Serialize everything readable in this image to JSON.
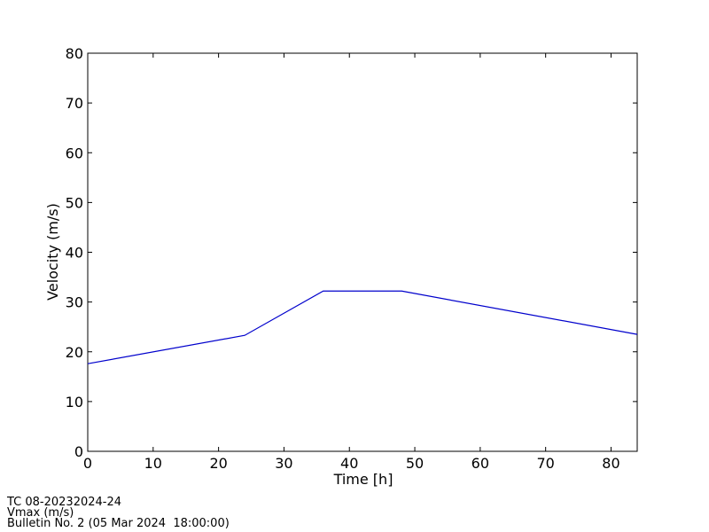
{
  "chart_data": {
    "type": "line",
    "x_label": "Time [h]",
    "y_label": "Velocity (m/s)",
    "x": [
      0,
      24,
      36,
      48,
      84
    ],
    "series": [
      {
        "name": "Vmax",
        "color": "#0000cc",
        "values": [
          17.6,
          23.3,
          32.2,
          32.2,
          23.5
        ]
      }
    ],
    "xlim": [
      0,
      84
    ],
    "xticks": [
      0,
      10,
      20,
      30,
      40,
      50,
      60,
      70,
      80
    ],
    "ylim": [
      0,
      80
    ],
    "yticks": [
      0,
      10,
      20,
      30,
      40,
      50,
      60,
      70,
      80
    ],
    "grid": false
  },
  "footer": [
    "TC 08-20232024-24",
    "Vmax (m/s)",
    "Bulletin No. 2 (05 Mar 2024  18:00:00)"
  ]
}
